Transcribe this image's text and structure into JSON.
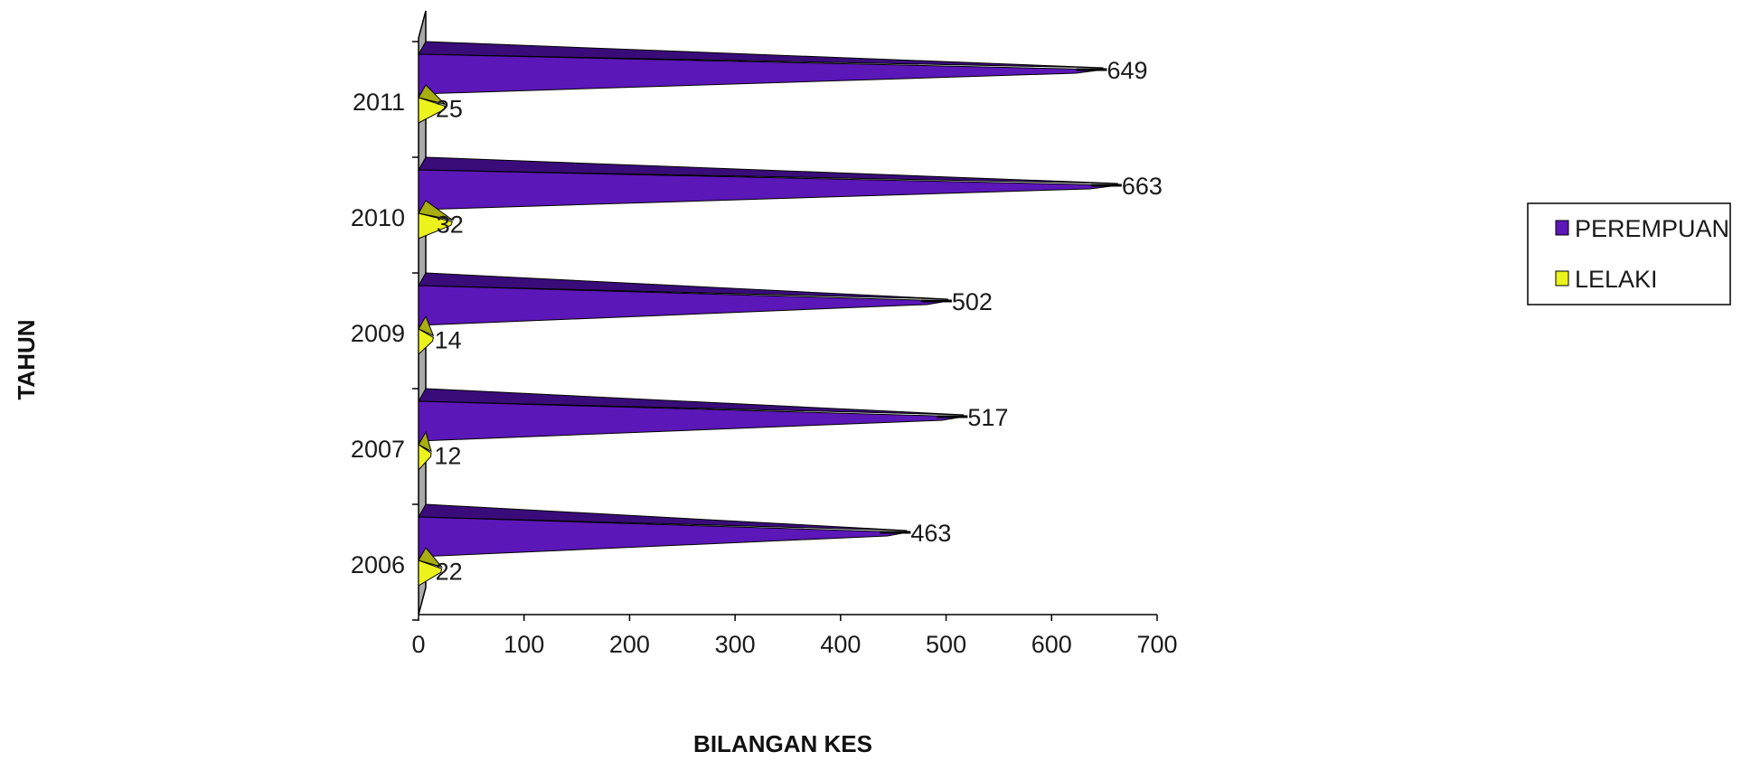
{
  "chart_data": {
    "type": "bar",
    "orientation": "horizontal",
    "categories": [
      "2006",
      "2007",
      "2009",
      "2010",
      "2011"
    ],
    "series": [
      {
        "name": "PEREMPUAN",
        "values": [
          463,
          517,
          502,
          663,
          649
        ],
        "labels": [
          "463",
          "517",
          "502",
          "663",
          "649"
        ]
      },
      {
        "name": "LELAKI",
        "values": [
          22,
          12,
          14,
          32,
          25
        ],
        "labels": [
          "22",
          "12",
          "14",
          "32",
          "25"
        ]
      }
    ],
    "xlabel": "BILANGAN KES",
    "ylabel": "TAHUN",
    "xlim": [
      0,
      700
    ],
    "xticks": [
      "0",
      "100",
      "200",
      "300",
      "400",
      "500",
      "600",
      "700"
    ],
    "grid": false,
    "legend_position": "right"
  },
  "colors": {
    "PEREMPUAN": "#5b17b8",
    "PEREMPUAN_dark": "#3a0c7a",
    "LELAKI": "#ecf21c",
    "LELAKI_dark": "#a8ad10"
  }
}
